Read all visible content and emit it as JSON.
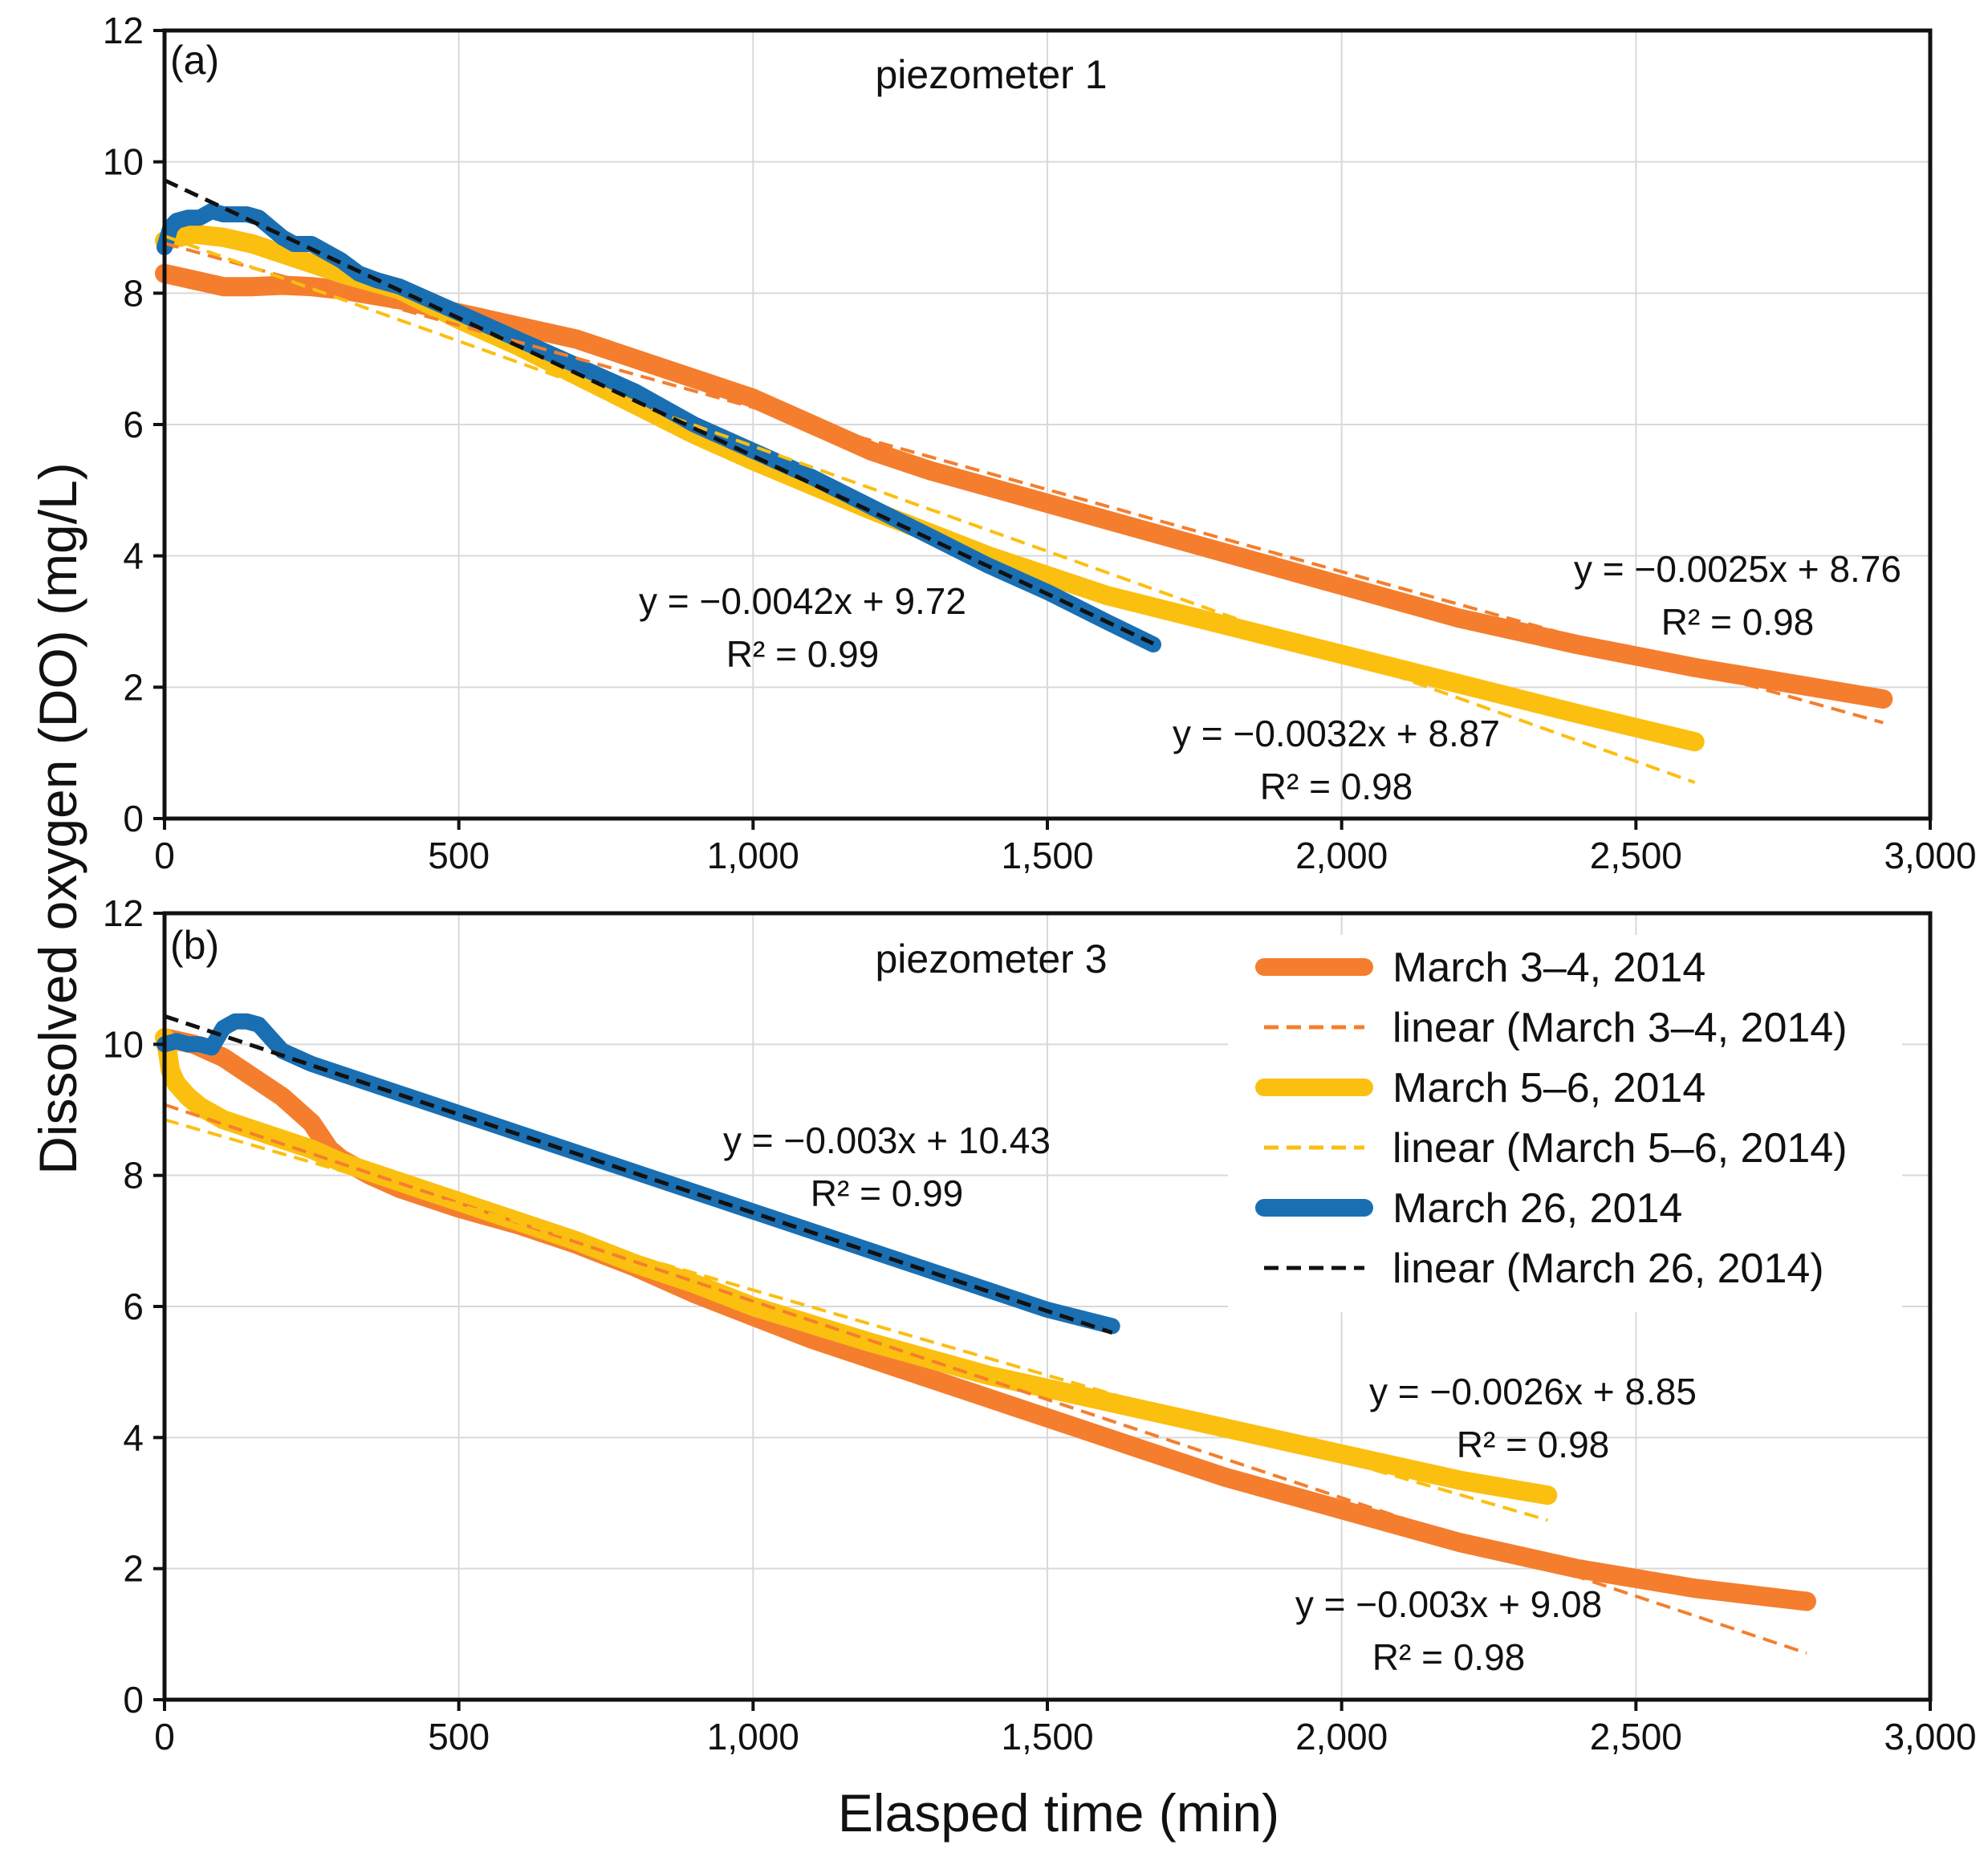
{
  "page": {
    "xlabel": "Elasped time (min)",
    "ylabel": "Dissolved oxygen (DO) (mg/L)"
  },
  "colors": {
    "march34": "#f47e2e",
    "march56": "#fbbf10",
    "march26": "#1a6fb3",
    "linear26": "#111111",
    "grid": "#d9d9d9"
  },
  "legend": {
    "placement": "panel b, top-right",
    "entries": [
      {
        "label": "March 3–4, 2014",
        "series": "march34",
        "style": "solid"
      },
      {
        "label": "linear (March 3–4, 2014)",
        "series": "march34",
        "style": "dashed"
      },
      {
        "label": "March 5–6, 2014",
        "series": "march56",
        "style": "solid"
      },
      {
        "label": "linear (March 5–6, 2014)",
        "series": "march56",
        "style": "dashed"
      },
      {
        "label": "March 26, 2014",
        "series": "march26",
        "style": "solid"
      },
      {
        "label": "linear (March 26, 2014)",
        "series": "linear26",
        "style": "dashed"
      }
    ]
  },
  "chart_data": [
    {
      "panel": "(a)",
      "type": "line",
      "title": "piezometer 1",
      "xlabel": "Elasped time (min)",
      "ylabel": "Dissolved oxygen (DO) (mg/L)",
      "xlim": [
        0,
        3000
      ],
      "ylim": [
        0,
        12
      ],
      "xticks": [
        0,
        500,
        1000,
        1500,
        2000,
        2500,
        3000
      ],
      "xtick_labels": [
        "0",
        "500",
        "1,000",
        "1,500",
        "2,000",
        "2,500",
        "3,000"
      ],
      "yticks": [
        0,
        2,
        4,
        6,
        8,
        10,
        12
      ],
      "grid": true,
      "series": [
        {
          "name": "March 3–4, 2014",
          "color": "#f47e2e",
          "x": [
            0,
            50,
            100,
            150,
            200,
            250,
            300,
            400,
            500,
            600,
            700,
            800,
            900,
            1000,
            1100,
            1200,
            1300,
            1400,
            1500,
            1600,
            1800,
            2000,
            2200,
            2400,
            2600,
            2800,
            2920
          ],
          "y": [
            8.3,
            8.2,
            8.1,
            8.1,
            8.12,
            8.1,
            8.05,
            7.9,
            7.7,
            7.5,
            7.3,
            7.0,
            6.7,
            6.4,
            6.0,
            5.6,
            5.3,
            5.05,
            4.8,
            4.55,
            4.05,
            3.55,
            3.05,
            2.65,
            2.3,
            2.0,
            1.82
          ]
        },
        {
          "name": "March 5–6, 2014",
          "color": "#fbbf10",
          "x": [
            0,
            50,
            100,
            150,
            200,
            250,
            300,
            400,
            500,
            600,
            700,
            800,
            900,
            1000,
            1200,
            1400,
            1600,
            1800,
            2000,
            2200,
            2400,
            2600
          ],
          "y": [
            8.8,
            8.9,
            8.85,
            8.75,
            8.6,
            8.45,
            8.3,
            8.05,
            7.6,
            7.2,
            6.75,
            6.3,
            5.85,
            5.45,
            4.7,
            4.0,
            3.4,
            2.95,
            2.5,
            2.05,
            1.6,
            1.17
          ]
        },
        {
          "name": "March 26, 2014",
          "color": "#1a6fb3",
          "x": [
            0,
            10,
            20,
            40,
            60,
            80,
            100,
            120,
            140,
            160,
            180,
            200,
            220,
            250,
            280,
            300,
            330,
            360,
            400,
            500,
            600,
            700,
            800,
            900,
            1000,
            1100,
            1200,
            1300,
            1400,
            1500,
            1600,
            1680
          ],
          "y": [
            8.7,
            9.0,
            9.1,
            9.15,
            9.15,
            9.25,
            9.2,
            9.2,
            9.2,
            9.15,
            9.0,
            8.85,
            8.75,
            8.75,
            8.6,
            8.5,
            8.3,
            8.2,
            8.1,
            7.7,
            7.3,
            6.9,
            6.5,
            6.0,
            5.6,
            5.2,
            4.75,
            4.3,
            3.85,
            3.45,
            3.0,
            2.65
          ]
        }
      ],
      "fits": [
        {
          "series": "March 3–4, 2014",
          "color": "#f47e2e",
          "slope": -0.0025,
          "intercept": 8.76,
          "x_end": 2920,
          "r2": 0.98,
          "equation": "y = −0.0025x + 8.76",
          "r2_label": "R² = 0.98"
        },
        {
          "series": "March 5–6, 2014",
          "color": "#fbbf10",
          "slope": -0.0032,
          "intercept": 8.87,
          "x_end": 2600,
          "r2": 0.98,
          "equation": "y = −0.0032x + 8.87",
          "r2_label": "R² = 0.98"
        },
        {
          "series": "March 26, 2014",
          "color": "#111111",
          "slope": -0.0042,
          "intercept": 9.72,
          "x_end": 1680,
          "r2": 0.99,
          "equation": "y = −0.0042x + 9.72",
          "r2_label": "R² = 0.99"
        }
      ]
    },
    {
      "panel": "(b)",
      "type": "line",
      "title": "piezometer 3",
      "xlabel": "Elasped time (min)",
      "ylabel": "Dissolved oxygen (DO) (mg/L)",
      "xlim": [
        0,
        3000
      ],
      "ylim": [
        0,
        12
      ],
      "xticks": [
        0,
        500,
        1000,
        1500,
        2000,
        2500,
        3000
      ],
      "xtick_labels": [
        "0",
        "500",
        "1,000",
        "1,500",
        "2,000",
        "2,500",
        "3,000"
      ],
      "yticks": [
        0,
        2,
        4,
        6,
        8,
        10,
        12
      ],
      "grid": true,
      "series": [
        {
          "name": "March 3–4, 2014",
          "color": "#f47e2e",
          "x": [
            0,
            50,
            100,
            150,
            200,
            250,
            280,
            300,
            350,
            400,
            500,
            600,
            700,
            800,
            900,
            1000,
            1100,
            1200,
            1300,
            1400,
            1500,
            1600,
            1800,
            2000,
            2200,
            2400,
            2600,
            2790
          ],
          "y": [
            10.1,
            10.0,
            9.8,
            9.5,
            9.2,
            8.8,
            8.4,
            8.25,
            8.0,
            7.8,
            7.5,
            7.25,
            6.95,
            6.6,
            6.2,
            5.85,
            5.5,
            5.2,
            4.9,
            4.6,
            4.3,
            4.0,
            3.4,
            2.9,
            2.4,
            2.0,
            1.7,
            1.5
          ]
        },
        {
          "name": "March 5–6, 2014",
          "color": "#fbbf10",
          "x": [
            0,
            5,
            10,
            20,
            40,
            60,
            80,
            100,
            150,
            200,
            250,
            300,
            400,
            500,
            600,
            700,
            800,
            900,
            1000,
            1200,
            1400,
            1600,
            1800,
            2000,
            2200,
            2350
          ],
          "y": [
            10.1,
            9.9,
            9.6,
            9.4,
            9.2,
            9.05,
            8.95,
            8.85,
            8.7,
            8.55,
            8.4,
            8.2,
            7.9,
            7.6,
            7.3,
            7.0,
            6.65,
            6.35,
            6.0,
            5.45,
            4.95,
            4.55,
            4.15,
            3.75,
            3.35,
            3.12
          ]
        },
        {
          "name": "March 26, 2014",
          "color": "#1a6fb3",
          "x": [
            0,
            20,
            40,
            60,
            80,
            100,
            120,
            140,
            160,
            180,
            200,
            250,
            300,
            400,
            500,
            600,
            700,
            800,
            900,
            1000,
            1100,
            1200,
            1300,
            1400,
            1500,
            1610
          ],
          "y": [
            10.0,
            10.05,
            10.0,
            10.0,
            9.95,
            10.25,
            10.35,
            10.35,
            10.3,
            10.1,
            9.9,
            9.7,
            9.55,
            9.25,
            8.95,
            8.65,
            8.35,
            8.05,
            7.75,
            7.45,
            7.15,
            6.85,
            6.55,
            6.25,
            5.95,
            5.7
          ]
        }
      ],
      "fits": [
        {
          "series": "March 3–4, 2014",
          "color": "#f47e2e",
          "slope": -0.003,
          "intercept": 9.08,
          "x_end": 2790,
          "r2": 0.98,
          "equation": "y = −0.003x + 9.08",
          "r2_label": "R² = 0.98"
        },
        {
          "series": "March 5–6, 2014",
          "color": "#fbbf10",
          "slope": -0.0026,
          "intercept": 8.85,
          "x_end": 2350,
          "r2": 0.98,
          "equation": "y = −0.0026x + 8.85",
          "r2_label": "R² = 0.98"
        },
        {
          "series": "March 26, 2014",
          "color": "#111111",
          "slope": -0.003,
          "intercept": 10.43,
          "x_end": 1610,
          "r2": 0.99,
          "equation": "y = −0.003x + 10.43",
          "r2_label": "R² = 0.99"
        }
      ]
    }
  ]
}
